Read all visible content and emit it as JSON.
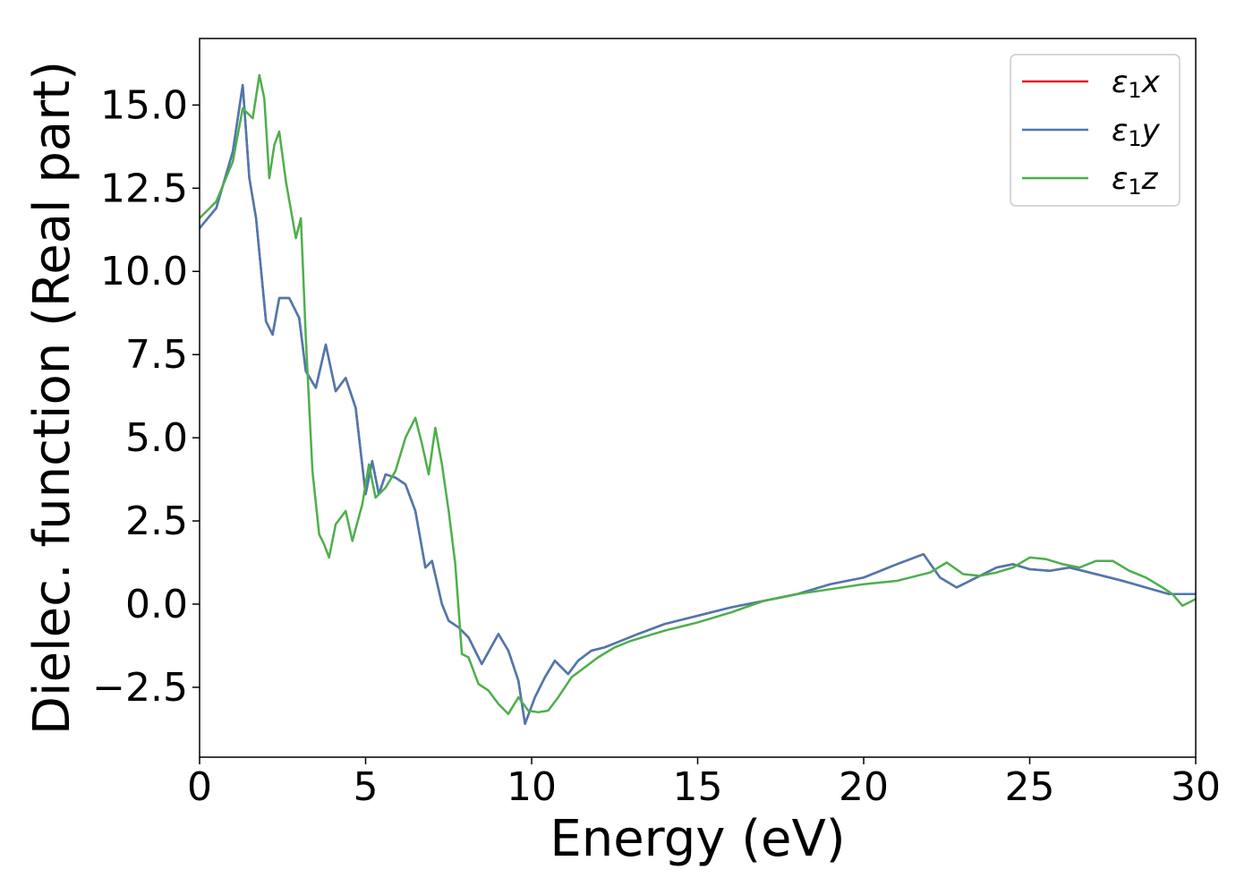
{
  "chart_data": {
    "type": "line",
    "xlabel": "Energy (eV)",
    "ylabel": "Dielec. function (Real part)",
    "xlim": [
      0,
      30
    ],
    "ylim": [
      -4.6,
      17.0
    ],
    "xticks": [
      0,
      5,
      10,
      15,
      20,
      25,
      30
    ],
    "xtick_labels": [
      "0",
      "5",
      "10",
      "15",
      "20",
      "25",
      "30"
    ],
    "yticks": [
      -2.5,
      0.0,
      2.5,
      5.0,
      7.5,
      10.0,
      12.5,
      15.0
    ],
    "ytick_labels": [
      "−2.5",
      "0.0",
      "2.5",
      "5.0",
      "7.5",
      "10.0",
      "12.5",
      "15.0"
    ],
    "grid": false,
    "legend_position": "top-right",
    "series": [
      {
        "name": "ε1x",
        "symbol": "ε",
        "subscript": "1",
        "suffix": "x",
        "color": "#e41a1c",
        "x": [
          0,
          0.5,
          1.0,
          1.3,
          1.5,
          1.7,
          2.0,
          2.2,
          2.4,
          2.7,
          3.0,
          3.2,
          3.5,
          3.8,
          4.1,
          4.4,
          4.7,
          5.0,
          5.2,
          5.4,
          5.6,
          5.9,
          6.2,
          6.5,
          6.8,
          7.0,
          7.3,
          7.5,
          7.8,
          8.1,
          8.5,
          9.0,
          9.3,
          9.6,
          9.8,
          10.1,
          10.4,
          10.7,
          11.1,
          11.4,
          11.8,
          12.2,
          12.7,
          13.2,
          14.0,
          15.0,
          16.0,
          17.0,
          18.0,
          19.0,
          20.0,
          21.0,
          21.8,
          22.3,
          22.8,
          23.2,
          24.0,
          24.5,
          25.0,
          25.6,
          26.2,
          27.0,
          27.8,
          28.5,
          29.2,
          29.6,
          30.0
        ],
        "y": [
          11.3,
          11.9,
          13.6,
          15.6,
          12.8,
          11.6,
          8.5,
          8.1,
          9.2,
          9.2,
          8.6,
          7.0,
          6.5,
          7.8,
          6.4,
          6.8,
          5.9,
          3.3,
          4.3,
          3.3,
          3.9,
          3.8,
          3.6,
          2.8,
          1.1,
          1.3,
          0.0,
          -0.5,
          -0.7,
          -1.0,
          -1.8,
          -0.9,
          -1.4,
          -2.3,
          -3.6,
          -2.8,
          -2.2,
          -1.7,
          -2.1,
          -1.7,
          -1.4,
          -1.3,
          -1.1,
          -0.9,
          -0.6,
          -0.35,
          -0.1,
          0.1,
          0.3,
          0.6,
          0.8,
          1.2,
          1.5,
          0.8,
          0.5,
          0.7,
          1.1,
          1.2,
          1.05,
          1.0,
          1.1,
          0.9,
          0.7,
          0.5,
          0.3,
          0.3,
          0.3
        ]
      },
      {
        "name": "ε1y",
        "symbol": "ε",
        "subscript": "1",
        "suffix": "y",
        "color": "#4a7ab0",
        "x": [
          0,
          0.5,
          1.0,
          1.3,
          1.5,
          1.7,
          2.0,
          2.2,
          2.4,
          2.7,
          3.0,
          3.2,
          3.5,
          3.8,
          4.1,
          4.4,
          4.7,
          5.0,
          5.2,
          5.4,
          5.6,
          5.9,
          6.2,
          6.5,
          6.8,
          7.0,
          7.3,
          7.5,
          7.8,
          8.1,
          8.5,
          9.0,
          9.3,
          9.6,
          9.8,
          10.1,
          10.4,
          10.7,
          11.1,
          11.4,
          11.8,
          12.2,
          12.7,
          13.2,
          14.0,
          15.0,
          16.0,
          17.0,
          18.0,
          19.0,
          20.0,
          21.0,
          21.8,
          22.3,
          22.8,
          23.2,
          24.0,
          24.5,
          25.0,
          25.6,
          26.2,
          27.0,
          27.8,
          28.5,
          29.2,
          29.6,
          30.0
        ],
        "y": [
          11.3,
          11.9,
          13.6,
          15.6,
          12.8,
          11.6,
          8.5,
          8.1,
          9.2,
          9.2,
          8.6,
          7.0,
          6.5,
          7.8,
          6.4,
          6.8,
          5.9,
          3.3,
          4.3,
          3.3,
          3.9,
          3.8,
          3.6,
          2.8,
          1.1,
          1.3,
          0.0,
          -0.5,
          -0.7,
          -1.0,
          -1.8,
          -0.9,
          -1.4,
          -2.3,
          -3.6,
          -2.8,
          -2.2,
          -1.7,
          -2.1,
          -1.7,
          -1.4,
          -1.3,
          -1.1,
          -0.9,
          -0.6,
          -0.35,
          -0.1,
          0.1,
          0.3,
          0.6,
          0.8,
          1.2,
          1.5,
          0.8,
          0.5,
          0.7,
          1.1,
          1.2,
          1.05,
          1.0,
          1.1,
          0.9,
          0.7,
          0.5,
          0.3,
          0.3,
          0.3
        ]
      },
      {
        "name": "ε1z",
        "symbol": "ε",
        "subscript": "1",
        "suffix": "z",
        "color": "#4daf4a",
        "x": [
          0,
          0.5,
          1.0,
          1.3,
          1.6,
          1.8,
          1.95,
          2.1,
          2.25,
          2.4,
          2.6,
          2.9,
          3.05,
          3.2,
          3.4,
          3.6,
          3.75,
          3.9,
          4.1,
          4.4,
          4.6,
          4.9,
          5.1,
          5.3,
          5.6,
          5.9,
          6.2,
          6.5,
          6.7,
          6.9,
          7.1,
          7.3,
          7.5,
          7.7,
          7.9,
          8.1,
          8.4,
          8.7,
          9.0,
          9.3,
          9.6,
          9.9,
          10.2,
          10.5,
          10.8,
          11.2,
          11.6,
          12.0,
          12.5,
          13.0,
          13.5,
          14.0,
          15.0,
          16.0,
          17.0,
          18.0,
          19.0,
          20.0,
          21.0,
          22.0,
          22.5,
          23.0,
          23.5,
          24.0,
          24.5,
          25.0,
          25.5,
          26.0,
          26.5,
          27.0,
          27.5,
          28.0,
          28.5,
          29.0,
          29.3,
          29.6,
          30.0
        ],
        "y": [
          11.6,
          12.1,
          13.3,
          14.9,
          14.6,
          15.9,
          15.2,
          12.8,
          13.8,
          14.2,
          12.7,
          11.0,
          11.6,
          8.0,
          4.0,
          2.1,
          1.8,
          1.4,
          2.4,
          2.8,
          1.9,
          3.0,
          4.2,
          3.2,
          3.5,
          4.0,
          5.0,
          5.6,
          4.8,
          3.9,
          5.3,
          4.2,
          2.8,
          1.2,
          -1.5,
          -1.6,
          -2.4,
          -2.6,
          -3.0,
          -3.3,
          -2.8,
          -3.2,
          -3.25,
          -3.2,
          -2.8,
          -2.2,
          -1.9,
          -1.6,
          -1.3,
          -1.1,
          -0.95,
          -0.8,
          -0.55,
          -0.25,
          0.1,
          0.3,
          0.45,
          0.6,
          0.7,
          0.95,
          1.25,
          0.9,
          0.85,
          0.95,
          1.1,
          1.4,
          1.35,
          1.2,
          1.1,
          1.3,
          1.3,
          1.0,
          0.8,
          0.5,
          0.3,
          -0.05,
          0.15
        ]
      }
    ]
  }
}
